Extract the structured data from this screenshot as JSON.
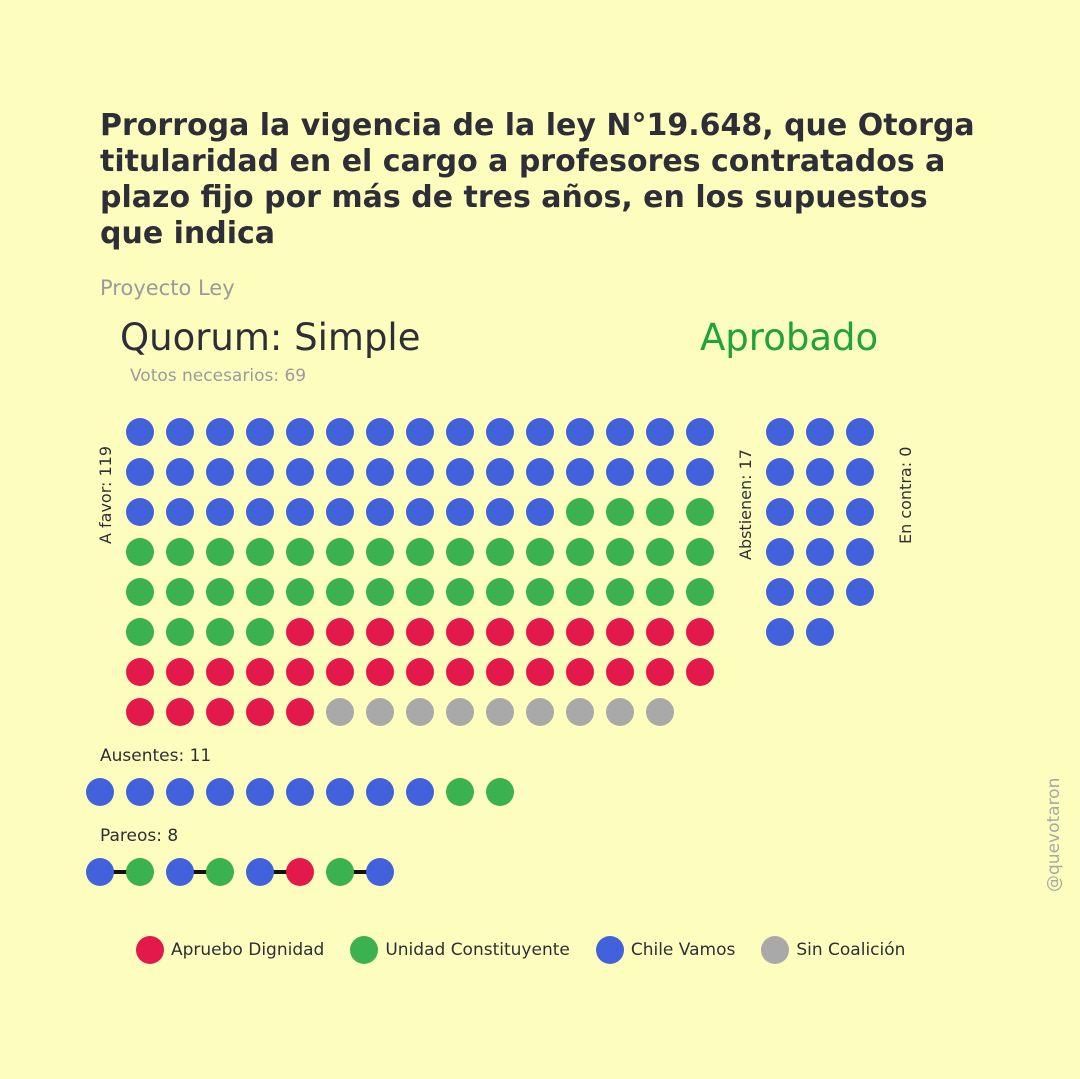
{
  "title": "Prorroga la vigencia de la ley N°19.648, que Otorga titularidad en el cargo a profesores contratados a plazo fijo por más de tres años, en los supuestos que indica",
  "subtitle": "Proyecto Ley",
  "quorum": "Quorum: Simple",
  "result": "Aprobado",
  "votes_needed": "Votos necesarios: 69",
  "watermark": "@quevotaron",
  "colors": {
    "apruebo": "#e3194b",
    "unidad": "#3bb24f",
    "chile": "#4262db",
    "sin": "#a9a9a9",
    "result": "#1fa33a"
  },
  "chart_data": {
    "type": "dot-matrix",
    "groups": [
      {
        "label": "A favor: 119",
        "count": 119,
        "counts": {
          "Chile Vamos": 41,
          "Unidad Constituyente": 38,
          "Apruebo Dignidad": 31,
          "Sin Coalición": 9
        }
      },
      {
        "label": "Abstienen: 17",
        "count": 17,
        "counts": {
          "Chile Vamos": 17
        }
      },
      {
        "label": "En contra: 0",
        "count": 0,
        "counts": {}
      },
      {
        "label": "Ausentes: 11",
        "count": 11,
        "counts": {
          "Chile Vamos": 9,
          "Unidad Constituyente": 2
        }
      },
      {
        "label": "Pareos: 8",
        "count": 8,
        "sequence": [
          "Chile Vamos",
          "Unidad Constituyente",
          "Chile Vamos",
          "Unidad Constituyente",
          "Chile Vamos",
          "Apruebo Dignidad",
          "Unidad Constituyente",
          "Chile Vamos"
        ]
      }
    ],
    "legend": [
      {
        "name": "Apruebo Dignidad",
        "color": "#e3194b"
      },
      {
        "name": "Unidad Constituyente",
        "color": "#3bb24f"
      },
      {
        "name": "Chile Vamos",
        "color": "#4262db"
      },
      {
        "name": "Sin Coalición",
        "color": "#a9a9a9"
      }
    ]
  }
}
